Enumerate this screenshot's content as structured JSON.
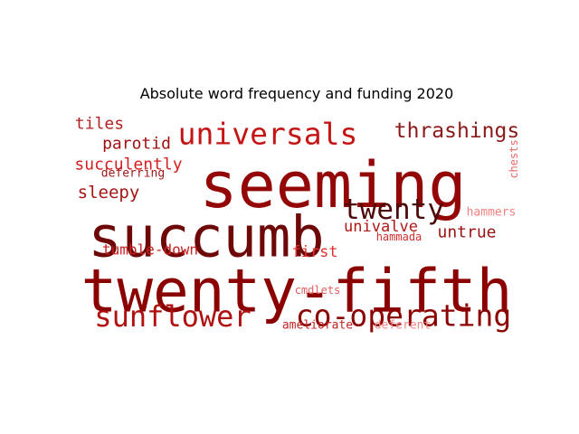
{
  "chart_data": {
    "type": "wordcloud",
    "title": "Absolute word frequency and funding 2020",
    "colors": {
      "darkest": "#5a0b0b",
      "dark": "#8b0000",
      "mid": "#b01010",
      "bright": "#d42020",
      "light": "#e44a4a",
      "pale": "#f07a7a"
    },
    "words": [
      {
        "text": "twenty-fifth",
        "weight": 1.0,
        "color": "#8b0000"
      },
      {
        "text": "seeming",
        "weight": 0.95,
        "color": "#930707"
      },
      {
        "text": "succumb",
        "weight": 0.88,
        "color": "#6e0808"
      },
      {
        "text": "universals",
        "weight": 0.52,
        "color": "#c41414"
      },
      {
        "text": "sunflower",
        "weight": 0.5,
        "color": "#b01010"
      },
      {
        "text": "co-operating",
        "weight": 0.5,
        "color": "#8b0000"
      },
      {
        "text": "twenty",
        "weight": 0.47,
        "color": "#4d0a0a"
      },
      {
        "text": "thrashings",
        "weight": 0.36,
        "color": "#8b1a1a"
      },
      {
        "text": "succulently",
        "weight": 0.28,
        "color": "#d42020"
      },
      {
        "text": "tiles",
        "weight": 0.26,
        "color": "#b22222"
      },
      {
        "text": "parotid",
        "weight": 0.26,
        "color": "#9e1010"
      },
      {
        "text": "sleepy",
        "weight": 0.27,
        "color": "#a51515"
      },
      {
        "text": "untrue",
        "weight": 0.25,
        "color": "#9a1212"
      },
      {
        "text": "univalve",
        "weight": 0.23,
        "color": "#b01818"
      },
      {
        "text": "first",
        "weight": 0.23,
        "color": "#e03030"
      },
      {
        "text": "tumble-down",
        "weight": 0.22,
        "color": "#c82020"
      },
      {
        "text": "deferring",
        "weight": 0.18,
        "color": "#a01818"
      },
      {
        "text": "chests",
        "weight": 0.16,
        "color": "#e86a6a"
      },
      {
        "text": "hammers",
        "weight": 0.17,
        "color": "#f08080"
      },
      {
        "text": "hammada",
        "weight": 0.16,
        "color": "#d03030"
      },
      {
        "text": "cmdlets",
        "weight": 0.16,
        "color": "#e46060"
      },
      {
        "text": "ameliorate",
        "weight": 0.17,
        "color": "#c02424"
      },
      {
        "text": "deferent",
        "weight": 0.17,
        "color": "#f08a8a"
      }
    ]
  }
}
